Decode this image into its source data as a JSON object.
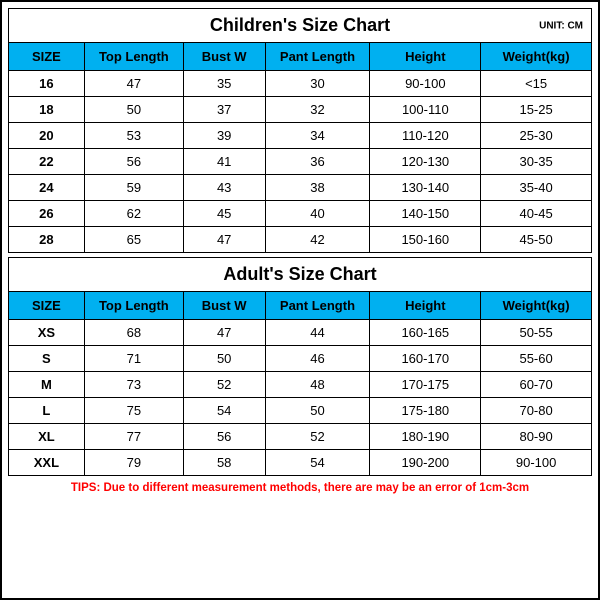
{
  "unit_label": "UNIT: CM",
  "columns": [
    "SIZE",
    "Top Length",
    "Bust W",
    "Pant Length",
    "Height",
    "Weight(kg)"
  ],
  "children": {
    "title": "Children's Size Chart",
    "rows": [
      [
        "16",
        "47",
        "35",
        "30",
        "90-100",
        "<15"
      ],
      [
        "18",
        "50",
        "37",
        "32",
        "100-110",
        "15-25"
      ],
      [
        "20",
        "53",
        "39",
        "34",
        "110-120",
        "25-30"
      ],
      [
        "22",
        "56",
        "41",
        "36",
        "120-130",
        "30-35"
      ],
      [
        "24",
        "59",
        "43",
        "38",
        "130-140",
        "35-40"
      ],
      [
        "26",
        "62",
        "45",
        "40",
        "140-150",
        "40-45"
      ],
      [
        "28",
        "65",
        "47",
        "42",
        "150-160",
        "45-50"
      ]
    ]
  },
  "adult": {
    "title": "Adult's Size Chart",
    "rows": [
      [
        "XS",
        "68",
        "47",
        "44",
        "160-165",
        "50-55"
      ],
      [
        "S",
        "71",
        "50",
        "46",
        "160-170",
        "55-60"
      ],
      [
        "M",
        "73",
        "52",
        "48",
        "170-175",
        "60-70"
      ],
      [
        "L",
        "75",
        "54",
        "50",
        "175-180",
        "70-80"
      ],
      [
        "XL",
        "77",
        "56",
        "52",
        "180-190",
        "80-90"
      ],
      [
        "XXL",
        "79",
        "58",
        "54",
        "190-200",
        "90-100"
      ]
    ]
  },
  "tips": "TIPS: Due to different measurement methods, there are may be an error of 1cm-3cm",
  "colors": {
    "header_bg": "#00b0f0",
    "border": "#000000",
    "tips_color": "#ff0000",
    "background": "#ffffff"
  }
}
